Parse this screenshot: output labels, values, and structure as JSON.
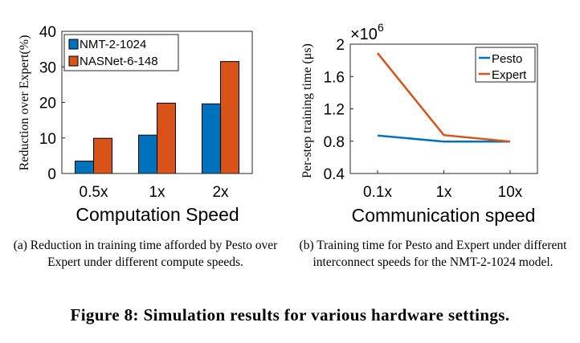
{
  "chart_data": [
    {
      "type": "bar",
      "categories": [
        "0.5x",
        "1x",
        "2x"
      ],
      "series": [
        {
          "name": "NMT-2-1024",
          "values": [
            3.5,
            10.8,
            19.6
          ],
          "color": "#0072BD"
        },
        {
          "name": "NASNet-6-148",
          "values": [
            9.9,
            19.8,
            31.5
          ],
          "color": "#D95319"
        }
      ],
      "xlabel": "Computation Speed",
      "ylabel": "Reduction over Expert(%)",
      "ylim": [
        0,
        40
      ],
      "yticks": [
        0,
        10,
        20,
        30,
        40
      ],
      "legend": "top-left",
      "grid": false,
      "caption": "(a) Reduction in training time afforded by Pesto over Expert under different compute speeds."
    },
    {
      "type": "line",
      "x": [
        "0.1x",
        "1x",
        "10x"
      ],
      "series": [
        {
          "name": "Pesto",
          "values": [
            0.87,
            0.795,
            0.795
          ],
          "color": "#0072BD"
        },
        {
          "name": "Expert",
          "values": [
            1.89,
            0.875,
            0.795
          ],
          "color": "#D95319"
        }
      ],
      "xlabel": "Communication speed",
      "ylabel": "Per-step training time (μs)",
      "ylim": [
        0.4,
        2.0
      ],
      "yticks": [
        "0.4",
        "0.8",
        "1.2",
        "1.6",
        "2"
      ],
      "exponent_base": "×10",
      "exponent_power": "6",
      "legend": "top-right",
      "grid": false,
      "caption": "(b) Training time for Pesto and Expert under different interconnect speeds for the NMT-2-1024 model."
    }
  ],
  "figure_caption": "Figure 8: Simulation results for various hardware settings."
}
